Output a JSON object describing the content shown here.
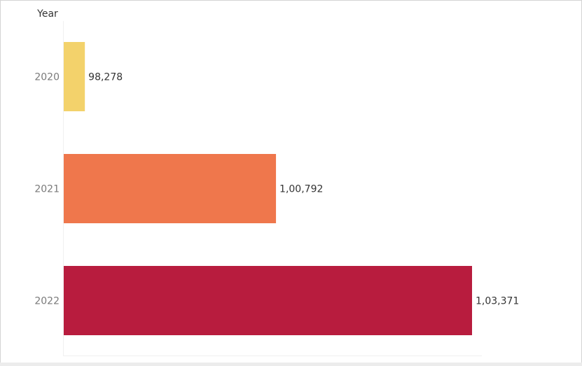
{
  "chart_data": {
    "type": "bar",
    "orientation": "horizontal",
    "ylabel": "Year",
    "categories": [
      "2020",
      "2021",
      "2022"
    ],
    "values": [
      98278,
      100792,
      103371
    ],
    "value_labels": [
      "98,278",
      "1,00,792",
      "1,03,371"
    ],
    "colors": [
      "#f3d26b",
      "#ef774c",
      "#b81c3e"
    ],
    "xlim": [
      98000,
      103500
    ],
    "grid": false,
    "legend": "none"
  }
}
